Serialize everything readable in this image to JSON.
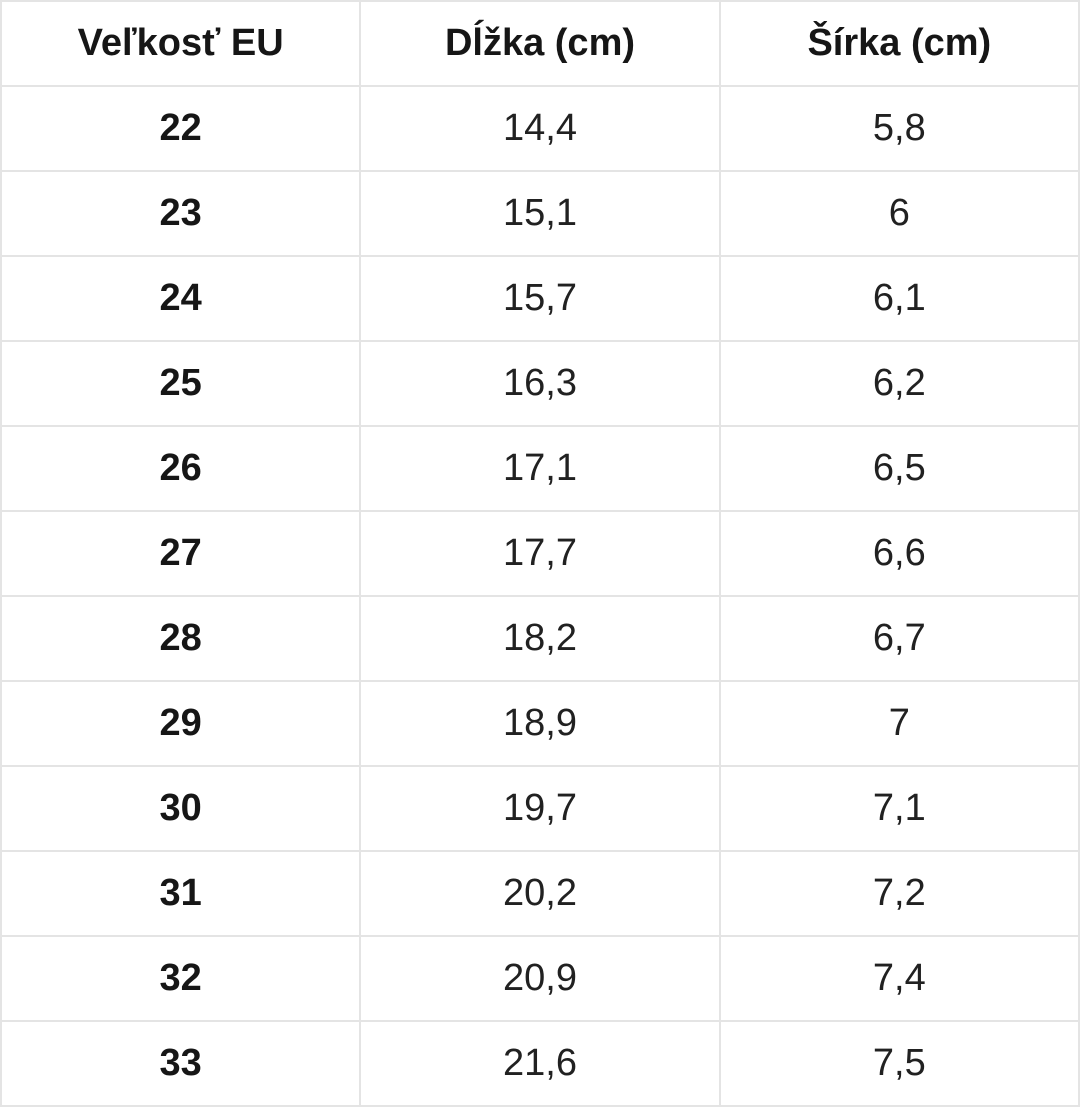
{
  "page": {
    "background_color": "#ffffff",
    "border_color": "#e4e4e4",
    "header_text_color": "#161616",
    "body_text_color": "#212121"
  },
  "table": {
    "columns": [
      "Veľkosť EU",
      "Dĺžka (cm)",
      "Šírka (cm)"
    ],
    "rows": [
      {
        "size": "22",
        "length": "14,4",
        "width": "5,8"
      },
      {
        "size": "23",
        "length": "15,1",
        "width": "6"
      },
      {
        "size": "24",
        "length": "15,7",
        "width": "6,1"
      },
      {
        "size": "25",
        "length": "16,3",
        "width": "6,2"
      },
      {
        "size": "26",
        "length": "17,1",
        "width": "6,5"
      },
      {
        "size": "27",
        "length": "17,7",
        "width": "6,6"
      },
      {
        "size": "28",
        "length": "18,2",
        "width": "6,7"
      },
      {
        "size": "29",
        "length": "18,9",
        "width": "7"
      },
      {
        "size": "30",
        "length": "19,7",
        "width": "7,1"
      },
      {
        "size": "31",
        "length": "20,2",
        "width": "7,2"
      },
      {
        "size": "32",
        "length": "20,9",
        "width": "7,4"
      },
      {
        "size": "33",
        "length": "21,6",
        "width": "7,5"
      }
    ]
  },
  "chart_data": {
    "type": "table",
    "columns": [
      "Veľkosť EU",
      "Dĺžka (cm)",
      "Šírka (cm)"
    ],
    "rows": [
      [
        "22",
        "14,4",
        "5,8"
      ],
      [
        "23",
        "15,1",
        "6"
      ],
      [
        "24",
        "15,7",
        "6,1"
      ],
      [
        "25",
        "16,3",
        "6,2"
      ],
      [
        "26",
        "17,1",
        "6,5"
      ],
      [
        "27",
        "17,7",
        "6,6"
      ],
      [
        "28",
        "18,2",
        "6,7"
      ],
      [
        "29",
        "18,9",
        "7"
      ],
      [
        "30",
        "19,7",
        "7,1"
      ],
      [
        "31",
        "20,2",
        "7,2"
      ],
      [
        "32",
        "20,9",
        "7,4"
      ],
      [
        "33",
        "21,6",
        "7,5"
      ]
    ],
    "notes": "EU children's shoe size chart: size vs foot length (cm) and width (cm), decimal comma formatting"
  }
}
